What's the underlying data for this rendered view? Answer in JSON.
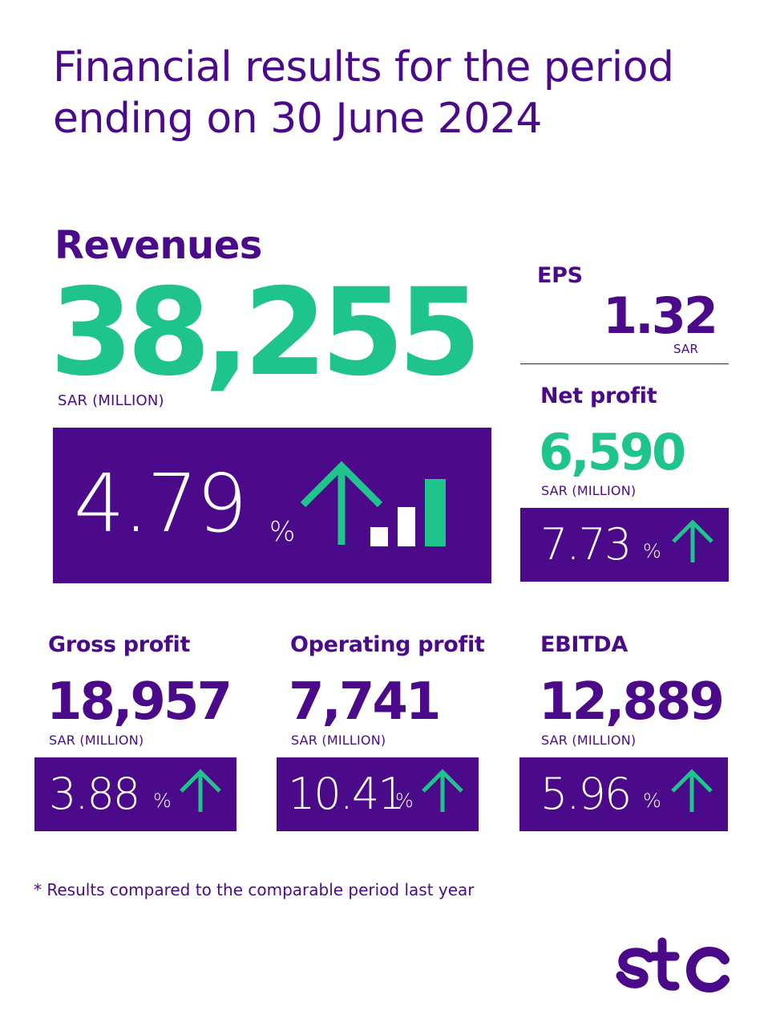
{
  "header": {
    "title_line1": "Financial results for the period",
    "title_line2": "ending on 30 June 2024"
  },
  "revenues": {
    "label": "Revenues",
    "value": "38,255",
    "unit": "SAR (MILLION)",
    "growth": "4.79",
    "percent_sign": "%"
  },
  "eps": {
    "label": "EPS",
    "value": "1.32",
    "unit": "SAR"
  },
  "net_profit": {
    "label": "Net profit",
    "value": "6,590",
    "unit": "SAR (MILLION)",
    "growth": "7.73",
    "percent_sign": "%"
  },
  "gross_profit": {
    "label": "Gross profit",
    "value": "18,957",
    "unit": "SAR (MILLION)",
    "growth": "3.88",
    "percent_sign": "%"
  },
  "operating_profit": {
    "label": "Operating profit",
    "value": "7,741",
    "unit": "SAR (MILLION)",
    "growth": "10.41",
    "percent_sign": "%"
  },
  "ebitda": {
    "label": "EBITDA",
    "value": "12,889",
    "unit": "SAR (MILLION)",
    "growth": "5.96",
    "percent_sign": "%"
  },
  "footnote": "* Results compared to the comparable period last year",
  "brand": {
    "logo_text": "stc",
    "primary_color": "#4b0a8a",
    "accent_color": "#1fc48d"
  },
  "icons": [
    "up-arrow-icon",
    "bar-growth-icon",
    "stc-logo"
  ]
}
